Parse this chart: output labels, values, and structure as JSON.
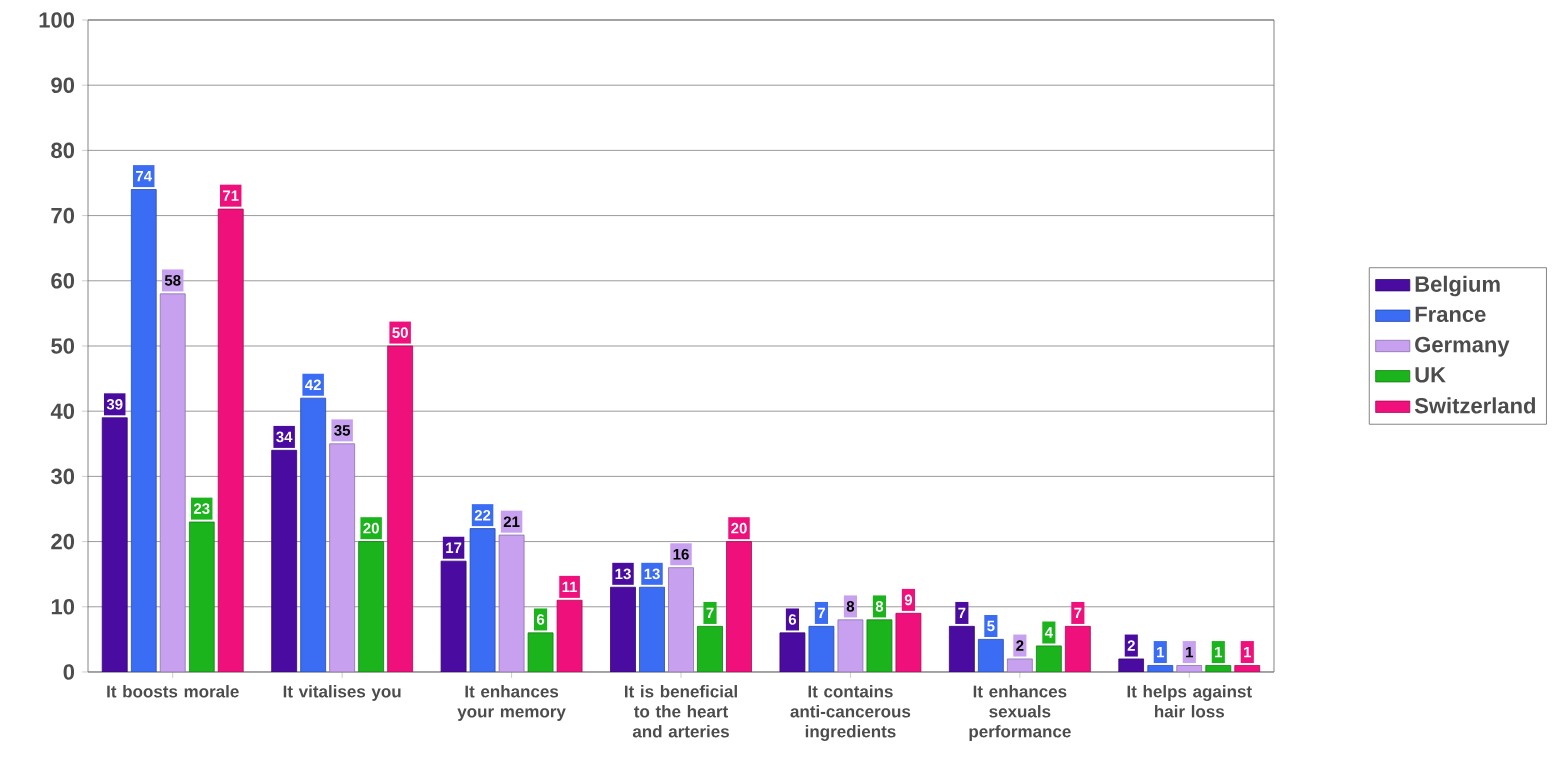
{
  "chart_data": {
    "type": "bar",
    "categories": [
      "It boosts morale",
      "It vitalises you",
      "It enhances your memory",
      "It is beneficial to the heart and arteries",
      "It contains anti-cancerous ingredients",
      "It enhances sexuals performance",
      "It helps against hair loss"
    ],
    "series": [
      {
        "name": "Belgium",
        "color": "#4a0ca0",
        "values": [
          39,
          34,
          17,
          13,
          6,
          7,
          2
        ]
      },
      {
        "name": "France",
        "color": "#3a6cf4",
        "values": [
          74,
          42,
          22,
          13,
          7,
          5,
          1
        ]
      },
      {
        "name": "Germany",
        "color": "#c8a0f0",
        "values": [
          58,
          35,
          21,
          16,
          8,
          2,
          1
        ]
      },
      {
        "name": "UK",
        "color": "#1cb41c",
        "values": [
          23,
          20,
          6,
          7,
          8,
          4,
          1
        ]
      },
      {
        "name": "Switzerland",
        "color": "#f0107c",
        "values": [
          71,
          50,
          11,
          20,
          9,
          7,
          1
        ]
      }
    ],
    "ylim": [
      0,
      100
    ],
    "yticks": [
      0,
      10,
      20,
      30,
      40,
      50,
      60,
      70,
      80,
      90,
      100
    ],
    "grid": "y",
    "legend": "right",
    "data_labels": true
  }
}
